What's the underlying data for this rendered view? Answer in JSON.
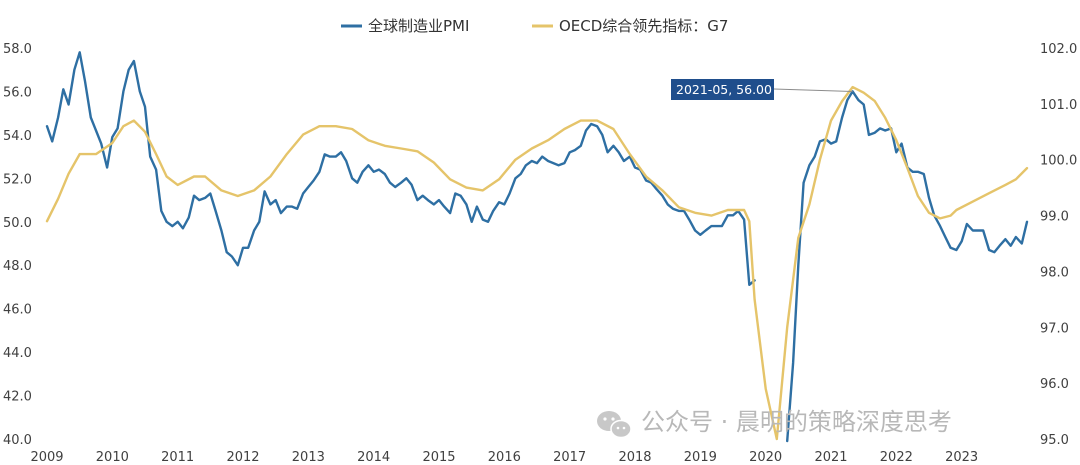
{
  "chart_data": {
    "type": "line",
    "legend": {
      "placement": "top-center"
    },
    "x_ticks": [
      "2009",
      "2010",
      "2011",
      "2012",
      "2013",
      "2014",
      "2015",
      "2016",
      "2017",
      "2018",
      "2019",
      "2020",
      "2021",
      "2022",
      "2023"
    ],
    "y_left": {
      "ylim": [
        40,
        58
      ],
      "ticks": [
        "40.0",
        "42.0",
        "44.0",
        "46.0",
        "48.0",
        "50.0",
        "52.0",
        "54.0",
        "56.0",
        "58.0"
      ]
    },
    "y_right": {
      "ylim": [
        95,
        102
      ],
      "ticks": [
        "95.0",
        "96.0",
        "97.0",
        "98.0",
        "99.0",
        "100.0",
        "101.0",
        "102.0"
      ]
    },
    "grid": false,
    "annotation": {
      "text": "2021-05, 56.00",
      "x": 2021.33,
      "y": 56.0,
      "axis": "left"
    },
    "series": [
      {
        "name": "全球制造业PMI",
        "axis": "left",
        "color": "#2e6fa3",
        "points": [
          [
            2009.0,
            54.4
          ],
          [
            2009.08,
            53.7
          ],
          [
            2009.17,
            54.8
          ],
          [
            2009.25,
            56.1
          ],
          [
            2009.33,
            55.4
          ],
          [
            2009.42,
            57.0
          ],
          [
            2009.5,
            57.8
          ],
          [
            2009.58,
            56.5
          ],
          [
            2009.67,
            54.8
          ],
          [
            2009.75,
            54.2
          ],
          [
            2009.83,
            53.6
          ],
          [
            2009.92,
            52.5
          ],
          [
            2010.0,
            53.9
          ],
          [
            2010.08,
            54.3
          ],
          [
            2010.17,
            56.0
          ],
          [
            2010.25,
            57.0
          ],
          [
            2010.33,
            57.4
          ],
          [
            2010.42,
            56.0
          ],
          [
            2010.5,
            55.3
          ],
          [
            2010.58,
            53.0
          ],
          [
            2010.67,
            52.4
          ],
          [
            2010.75,
            50.5
          ],
          [
            2010.83,
            50.0
          ],
          [
            2010.92,
            49.8
          ],
          [
            2011.0,
            50.0
          ],
          [
            2011.08,
            49.7
          ],
          [
            2011.17,
            50.2
          ],
          [
            2011.25,
            51.2
          ],
          [
            2011.33,
            51.0
          ],
          [
            2011.42,
            51.1
          ],
          [
            2011.5,
            51.3
          ],
          [
            2011.58,
            50.5
          ],
          [
            2011.67,
            49.6
          ],
          [
            2011.75,
            48.6
          ],
          [
            2011.83,
            48.4
          ],
          [
            2011.92,
            48.0
          ],
          [
            2012.0,
            48.8
          ],
          [
            2012.08,
            48.8
          ],
          [
            2012.17,
            49.6
          ],
          [
            2012.25,
            50.0
          ],
          [
            2012.33,
            51.4
          ],
          [
            2012.42,
            50.8
          ],
          [
            2012.5,
            51.0
          ],
          [
            2012.58,
            50.4
          ],
          [
            2012.67,
            50.7
          ],
          [
            2012.75,
            50.7
          ],
          [
            2012.83,
            50.6
          ],
          [
            2012.92,
            51.3
          ],
          [
            2013.0,
            51.6
          ],
          [
            2013.08,
            51.9
          ],
          [
            2013.17,
            52.3
          ],
          [
            2013.25,
            53.1
          ],
          [
            2013.33,
            53.0
          ],
          [
            2013.42,
            53.0
          ],
          [
            2013.5,
            53.2
          ],
          [
            2013.58,
            52.8
          ],
          [
            2013.67,
            52.0
          ],
          [
            2013.75,
            51.8
          ],
          [
            2013.83,
            52.3
          ],
          [
            2013.92,
            52.6
          ],
          [
            2014.0,
            52.3
          ],
          [
            2014.08,
            52.4
          ],
          [
            2014.17,
            52.2
          ],
          [
            2014.25,
            51.8
          ],
          [
            2014.33,
            51.6
          ],
          [
            2014.42,
            51.8
          ],
          [
            2014.5,
            52.0
          ],
          [
            2014.58,
            51.7
          ],
          [
            2014.67,
            51.0
          ],
          [
            2014.75,
            51.2
          ],
          [
            2014.83,
            51.0
          ],
          [
            2014.92,
            50.8
          ],
          [
            2015.0,
            51.0
          ],
          [
            2015.08,
            50.7
          ],
          [
            2015.17,
            50.4
          ],
          [
            2015.25,
            51.3
          ],
          [
            2015.33,
            51.2
          ],
          [
            2015.42,
            50.8
          ],
          [
            2015.5,
            50.0
          ],
          [
            2015.58,
            50.7
          ],
          [
            2015.67,
            50.1
          ],
          [
            2015.75,
            50.0
          ],
          [
            2015.83,
            50.5
          ],
          [
            2015.92,
            50.9
          ],
          [
            2016.0,
            50.8
          ],
          [
            2016.08,
            51.3
          ],
          [
            2016.17,
            52.0
          ],
          [
            2016.25,
            52.2
          ],
          [
            2016.33,
            52.6
          ],
          [
            2016.42,
            52.8
          ],
          [
            2016.5,
            52.7
          ],
          [
            2016.58,
            53.0
          ],
          [
            2016.67,
            52.8
          ],
          [
            2016.75,
            52.7
          ],
          [
            2016.83,
            52.6
          ],
          [
            2016.92,
            52.7
          ],
          [
            2017.0,
            53.2
          ],
          [
            2017.08,
            53.3
          ],
          [
            2017.17,
            53.5
          ],
          [
            2017.25,
            54.2
          ],
          [
            2017.33,
            54.5
          ],
          [
            2017.42,
            54.4
          ],
          [
            2017.5,
            54.0
          ],
          [
            2017.58,
            53.2
          ],
          [
            2017.67,
            53.5
          ],
          [
            2017.75,
            53.2
          ],
          [
            2017.83,
            52.8
          ],
          [
            2017.92,
            53.0
          ],
          [
            2018.0,
            52.5
          ],
          [
            2018.08,
            52.4
          ],
          [
            2018.17,
            51.9
          ],
          [
            2018.25,
            51.8
          ],
          [
            2018.33,
            51.5
          ],
          [
            2018.42,
            51.2
          ],
          [
            2018.5,
            50.8
          ],
          [
            2018.58,
            50.6
          ],
          [
            2018.67,
            50.5
          ],
          [
            2018.75,
            50.5
          ],
          [
            2018.83,
            50.1
          ],
          [
            2018.92,
            49.6
          ],
          [
            2019.0,
            49.4
          ],
          [
            2019.08,
            49.6
          ],
          [
            2019.17,
            49.8
          ],
          [
            2019.25,
            49.8
          ],
          [
            2019.33,
            49.8
          ],
          [
            2019.42,
            50.3
          ],
          [
            2019.5,
            50.3
          ],
          [
            2019.58,
            50.5
          ],
          [
            2019.67,
            50.1
          ],
          [
            2019.75,
            47.1
          ],
          [
            2019.83,
            47.3
          ],
          [
            2019.92,
            null
          ],
          [
            2020.0,
            null
          ],
          [
            2020.08,
            null
          ],
          [
            2020.17,
            null
          ],
          [
            2020.25,
            null
          ],
          [
            2020.33,
            39.8
          ],
          [
            2020.42,
            43.5
          ],
          [
            2020.5,
            48.0
          ],
          [
            2020.58,
            51.8
          ],
          [
            2020.67,
            52.6
          ],
          [
            2020.75,
            53.0
          ],
          [
            2020.83,
            53.7
          ],
          [
            2020.92,
            53.8
          ],
          [
            2021.0,
            53.6
          ],
          [
            2021.08,
            53.7
          ],
          [
            2021.17,
            54.8
          ],
          [
            2021.25,
            55.6
          ],
          [
            2021.33,
            56.0
          ],
          [
            2021.42,
            55.6
          ],
          [
            2021.5,
            55.4
          ],
          [
            2021.58,
            54.0
          ],
          [
            2021.67,
            54.1
          ],
          [
            2021.75,
            54.3
          ],
          [
            2021.83,
            54.2
          ],
          [
            2021.92,
            54.3
          ],
          [
            2022.0,
            53.2
          ],
          [
            2022.08,
            53.6
          ],
          [
            2022.17,
            52.5
          ],
          [
            2022.25,
            52.3
          ],
          [
            2022.33,
            52.3
          ],
          [
            2022.42,
            52.2
          ],
          [
            2022.5,
            51.1
          ],
          [
            2022.58,
            50.3
          ],
          [
            2022.67,
            49.8
          ],
          [
            2022.75,
            49.3
          ],
          [
            2022.83,
            48.8
          ],
          [
            2022.92,
            48.7
          ],
          [
            2023.0,
            49.1
          ],
          [
            2023.08,
            49.9
          ],
          [
            2023.17,
            49.6
          ],
          [
            2023.25,
            49.6
          ],
          [
            2023.33,
            49.6
          ],
          [
            2023.42,
            48.7
          ],
          [
            2023.5,
            48.6
          ],
          [
            2023.58,
            48.9
          ],
          [
            2023.67,
            49.2
          ],
          [
            2023.75,
            48.9
          ],
          [
            2023.83,
            49.3
          ],
          [
            2023.92,
            49.0
          ],
          [
            2024.0,
            50.0
          ]
        ]
      },
      {
        "name": "OECD综合领先指标：G7",
        "axis": "right",
        "color": "#e5c46a",
        "points": [
          [
            2009.0,
            98.9
          ],
          [
            2009.17,
            99.3
          ],
          [
            2009.33,
            99.75
          ],
          [
            2009.5,
            100.1
          ],
          [
            2009.75,
            100.1
          ],
          [
            2010.0,
            100.3
          ],
          [
            2010.17,
            100.6
          ],
          [
            2010.33,
            100.7
          ],
          [
            2010.5,
            100.5
          ],
          [
            2010.67,
            100.1
          ],
          [
            2010.83,
            99.7
          ],
          [
            2011.0,
            99.55
          ],
          [
            2011.25,
            99.7
          ],
          [
            2011.42,
            99.7
          ],
          [
            2011.67,
            99.45
          ],
          [
            2011.92,
            99.35
          ],
          [
            2012.17,
            99.45
          ],
          [
            2012.42,
            99.7
          ],
          [
            2012.67,
            100.1
          ],
          [
            2012.92,
            100.45
          ],
          [
            2013.17,
            100.6
          ],
          [
            2013.42,
            100.6
          ],
          [
            2013.67,
            100.55
          ],
          [
            2013.92,
            100.35
          ],
          [
            2014.17,
            100.25
          ],
          [
            2014.42,
            100.2
          ],
          [
            2014.67,
            100.15
          ],
          [
            2014.92,
            99.95
          ],
          [
            2015.17,
            99.65
          ],
          [
            2015.42,
            99.5
          ],
          [
            2015.67,
            99.45
          ],
          [
            2015.92,
            99.65
          ],
          [
            2016.17,
            100.0
          ],
          [
            2016.42,
            100.2
          ],
          [
            2016.67,
            100.35
          ],
          [
            2016.92,
            100.55
          ],
          [
            2017.17,
            100.7
          ],
          [
            2017.42,
            100.7
          ],
          [
            2017.67,
            100.55
          ],
          [
            2017.92,
            100.1
          ],
          [
            2018.17,
            99.7
          ],
          [
            2018.42,
            99.45
          ],
          [
            2018.67,
            99.15
          ],
          [
            2018.92,
            99.05
          ],
          [
            2019.17,
            99.0
          ],
          [
            2019.42,
            99.1
          ],
          [
            2019.67,
            99.1
          ],
          [
            2019.75,
            98.9
          ],
          [
            2019.83,
            97.5
          ],
          [
            2020.0,
            95.9
          ],
          [
            2020.17,
            95.0
          ],
          [
            2020.33,
            97.0
          ],
          [
            2020.5,
            98.6
          ],
          [
            2020.67,
            99.2
          ],
          [
            2020.83,
            100.0
          ],
          [
            2021.0,
            100.7
          ],
          [
            2021.17,
            101.05
          ],
          [
            2021.33,
            101.3
          ],
          [
            2021.5,
            101.2
          ],
          [
            2021.67,
            101.05
          ],
          [
            2021.83,
            100.75
          ],
          [
            2022.0,
            100.35
          ],
          [
            2022.17,
            99.85
          ],
          [
            2022.33,
            99.35
          ],
          [
            2022.5,
            99.05
          ],
          [
            2022.67,
            98.95
          ],
          [
            2022.83,
            99.0
          ],
          [
            2022.92,
            99.1
          ],
          [
            2023.17,
            99.25
          ],
          [
            2023.42,
            99.4
          ],
          [
            2023.67,
            99.55
          ],
          [
            2023.83,
            99.65
          ],
          [
            2024.0,
            99.85
          ]
        ]
      }
    ]
  },
  "watermark": {
    "text": "公众号 · 晨明的策略深度思考",
    "icon": "wechat-icon"
  }
}
